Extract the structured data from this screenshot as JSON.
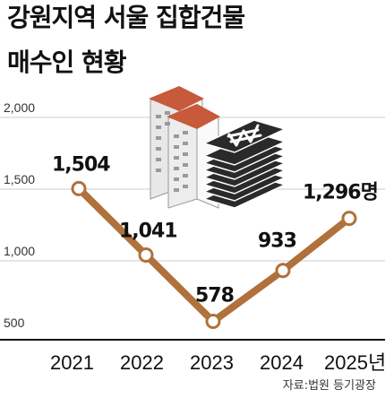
{
  "title_line1": "강원지역 서울 집합건물",
  "title_line2": "매수인 현황",
  "source": "자료:법원 등기광장",
  "colors": {
    "line": "#b0713b",
    "marker_fill": "#ffffff",
    "axis": "#111111",
    "grid": "#cccccc"
  },
  "icons": [
    "apartment-building-icon",
    "banknote-stack-icon"
  ],
  "chart_data": {
    "type": "line",
    "title": "강원지역 서울 집합건물 매수인 현황",
    "x": [
      "2021",
      "2022",
      "2023",
      "2024",
      "2025년"
    ],
    "series": [
      {
        "values": [
          1504,
          1041,
          578,
          933,
          1296
        ],
        "labels": [
          "1,504",
          "1,041",
          "578",
          "933",
          "1,296명"
        ]
      }
    ],
    "yticks": [
      2000,
      1500,
      1000,
      500
    ],
    "ytick_labels": [
      "2,000",
      "1,500",
      "1,000",
      "500"
    ],
    "ylim": [
      500,
      2000
    ],
    "grid": true
  }
}
